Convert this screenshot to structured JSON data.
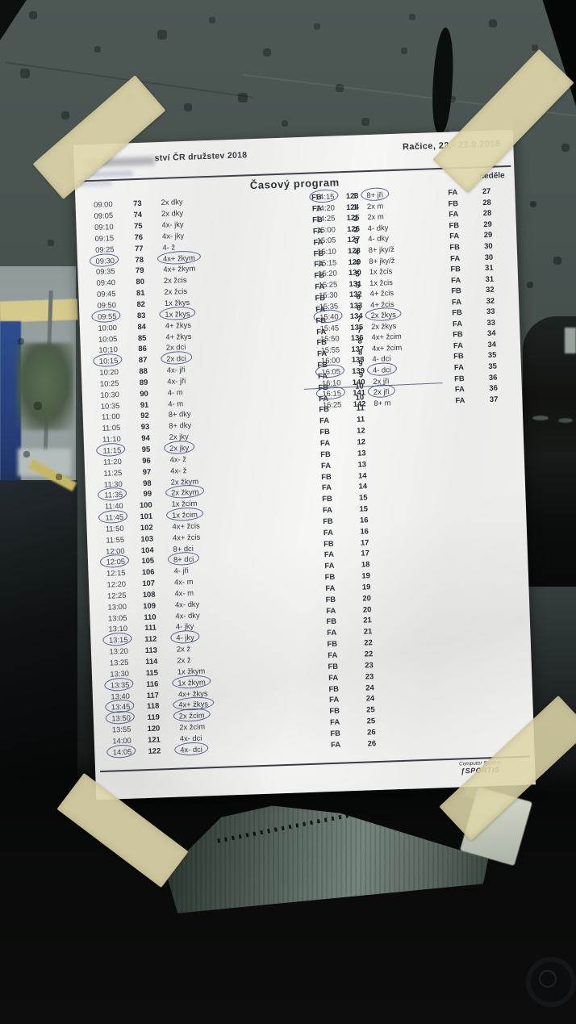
{
  "photo": {
    "colors": {
      "ink_pen": "#384886",
      "print": "#31363f",
      "tape": "#ded6aa",
      "paper": "#f2f2f1"
    },
    "header": {
      "title_partial": "ství ČR družstev 2018",
      "location_date": "Račice,  22.- 23.9.2018",
      "program_title": "Časový program",
      "day_label": "neděle"
    },
    "footer": {
      "line1": "Computer System",
      "logo": "ƒSPORTIS"
    }
  },
  "schedule": {
    "left": [
      {
        "t": "09:00",
        "n": "73",
        "b": "2x dky",
        "p": "FB",
        "f": "1",
        "c": 0
      },
      {
        "t": "09:05",
        "n": "74",
        "b": "2x dky",
        "p": "FA",
        "f": "1",
        "c": 0
      },
      {
        "t": "09:10",
        "n": "75",
        "b": "4x- jky",
        "p": "FB",
        "f": "2",
        "c": 0
      },
      {
        "t": "09:15",
        "n": "76",
        "b": "4x- jky",
        "p": "FA",
        "f": "2",
        "c": 0
      },
      {
        "t": "09:25",
        "n": "77",
        "b": "4- ž",
        "p": "FA",
        "f": "3",
        "c": 0
      },
      {
        "t": "09:30",
        "n": "78",
        "b": "4x+ žkym",
        "p": "FB",
        "f": "4",
        "c": 1
      },
      {
        "t": "09:35",
        "n": "79",
        "b": "4x+ žkym",
        "p": "FA",
        "f": "4",
        "c": 0
      },
      {
        "t": "09:40",
        "n": "80",
        "b": "2x žcis",
        "p": "FB",
        "f": "5",
        "c": 0
      },
      {
        "t": "09:45",
        "n": "81",
        "b": "2x žcis",
        "p": "FA",
        "f": "5",
        "c": 0
      },
      {
        "t": "09:50",
        "n": "82",
        "b": "1x žkys",
        "p": "FB",
        "f": "6",
        "c": 0
      },
      {
        "t": "09:55",
        "n": "83",
        "b": "1x žkys",
        "p": "FA",
        "f": "6",
        "c": 1
      },
      {
        "t": "10:00",
        "n": "84",
        "b": "4+ žkys",
        "p": "FB",
        "f": "7",
        "c": 0
      },
      {
        "t": "10:05",
        "n": "85",
        "b": "4+ žkys",
        "p": "FA",
        "f": "7",
        "c": 0
      },
      {
        "t": "10:10",
        "n": "86",
        "b": "2x dci",
        "p": "FB",
        "f": "8",
        "c": 0
      },
      {
        "t": "10:15",
        "n": "87",
        "b": "2x dci",
        "p": "FA",
        "f": "8",
        "c": 1
      },
      {
        "t": "10:20",
        "n": "88",
        "b": "4x- jři",
        "p": "FB",
        "f": "9",
        "c": 0
      },
      {
        "t": "10:25",
        "n": "89",
        "b": "4x- jři",
        "p": "FA",
        "f": "9",
        "c": 0
      },
      {
        "t": "10:30",
        "n": "90",
        "b": "4- m",
        "p": "FB",
        "f": "10",
        "c": 0
      },
      {
        "t": "10:35",
        "n": "91",
        "b": "4- m",
        "p": "FA",
        "f": "10",
        "c": 0
      },
      {
        "t": "11:00",
        "n": "92",
        "b": "8+ dky",
        "p": "FB",
        "f": "11",
        "c": 0
      },
      {
        "t": "11:05",
        "n": "93",
        "b": "8+ dky",
        "p": "FA",
        "f": "11",
        "c": 0
      },
      {
        "t": "11:10",
        "n": "94",
        "b": "2x jky",
        "p": "FB",
        "f": "12",
        "c": 0
      },
      {
        "t": "11:15",
        "n": "95",
        "b": "2x jky",
        "p": "FA",
        "f": "12",
        "c": 1
      },
      {
        "t": "11:20",
        "n": "96",
        "b": "4x- ž",
        "p": "FB",
        "f": "13",
        "c": 0
      },
      {
        "t": "11:25",
        "n": "97",
        "b": "4x- ž",
        "p": "FA",
        "f": "13",
        "c": 0
      },
      {
        "t": "11:30",
        "n": "98",
        "b": "2x žkym",
        "p": "FB",
        "f": "14",
        "c": 0
      },
      {
        "t": "11:35",
        "n": "99",
        "b": "2x žkym",
        "p": "FA",
        "f": "14",
        "c": 1
      },
      {
        "t": "11:40",
        "n": "100",
        "b": "1x žcim",
        "p": "FB",
        "f": "15",
        "c": 0
      },
      {
        "t": "11:45",
        "n": "101",
        "b": "1x žcim",
        "p": "FA",
        "f": "15",
        "c": 1
      },
      {
        "t": "11:50",
        "n": "102",
        "b": "4x+ žcis",
        "p": "FB",
        "f": "16",
        "c": 0
      },
      {
        "t": "11:55",
        "n": "103",
        "b": "4x+ žcis",
        "p": "FA",
        "f": "16",
        "c": 0
      },
      {
        "t": "12:00",
        "n": "104",
        "b": "8+ dci",
        "p": "FB",
        "f": "17",
        "c": 0
      },
      {
        "t": "12:05",
        "n": "105",
        "b": "8+ dci",
        "p": "FA",
        "f": "17",
        "c": 1
      },
      {
        "t": "12:15",
        "n": "106",
        "b": "4- jři",
        "p": "FA",
        "f": "18",
        "c": 0
      },
      {
        "t": "12:20",
        "n": "107",
        "b": "4x- m",
        "p": "FB",
        "f": "19",
        "c": 0
      },
      {
        "t": "12:25",
        "n": "108",
        "b": "4x- m",
        "p": "FA",
        "f": "19",
        "c": 0
      },
      {
        "t": "13:00",
        "n": "109",
        "b": "4x- dky",
        "p": "FB",
        "f": "20",
        "c": 0
      },
      {
        "t": "13:05",
        "n": "110",
        "b": "4x- dky",
        "p": "FA",
        "f": "20",
        "c": 0
      },
      {
        "t": "13:10",
        "n": "111",
        "b": "4- jky",
        "p": "FB",
        "f": "21",
        "c": 0
      },
      {
        "t": "13:15",
        "n": "112",
        "b": "4- jky",
        "p": "FA",
        "f": "21",
        "c": 1
      },
      {
        "t": "13:20",
        "n": "113",
        "b": "2x ž",
        "p": "FB",
        "f": "22",
        "c": 0
      },
      {
        "t": "13:25",
        "n": "114",
        "b": "2x ž",
        "p": "FA",
        "f": "22",
        "c": 0
      },
      {
        "t": "13:30",
        "n": "115",
        "b": "1x žkym",
        "p": "FB",
        "f": "23",
        "c": 0
      },
      {
        "t": "13:35",
        "n": "116",
        "b": "1x žkym",
        "p": "FA",
        "f": "23",
        "c": 1
      },
      {
        "t": "13:40",
        "n": "117",
        "b": "4x+ žkys",
        "p": "FB",
        "f": "24",
        "c": 0
      },
      {
        "t": "13:45",
        "n": "118",
        "b": "4x+ žkys",
        "p": "FA",
        "f": "24",
        "c": 1
      },
      {
        "t": "13:50",
        "n": "119",
        "b": "2x žcim",
        "p": "FB",
        "f": "25",
        "c": 1
      },
      {
        "t": "13:55",
        "n": "120",
        "b": "2x žcim",
        "p": "FA",
        "f": "25",
        "c": 0
      },
      {
        "t": "14:00",
        "n": "121",
        "b": "4x- dci",
        "p": "FB",
        "f": "26",
        "c": 0
      },
      {
        "t": "14:05",
        "n": "122",
        "b": "4x- dci",
        "p": "FA",
        "f": "26",
        "c": 1
      }
    ],
    "right": [
      {
        "t": "14:15",
        "n": "123",
        "b": "8+ jři",
        "p": "FA",
        "f": "27",
        "c": 1
      },
      {
        "t": "14:20",
        "n": "124",
        "b": "2x m",
        "p": "FB",
        "f": "28",
        "c": 0
      },
      {
        "t": "14:25",
        "n": "125",
        "b": "2x m",
        "p": "FA",
        "f": "28",
        "c": 0
      },
      {
        "t": "15:00",
        "n": "126",
        "b": "4- dky",
        "p": "FB",
        "f": "29",
        "c": 0
      },
      {
        "t": "15:05",
        "n": "127",
        "b": "4- dky",
        "p": "FA",
        "f": "29",
        "c": 0
      },
      {
        "t": "15:10",
        "n": "128",
        "b": "8+ jky/ž",
        "p": "FB",
        "f": "30",
        "c": 0
      },
      {
        "t": "15:15",
        "n": "129",
        "b": "8+ jky/ž",
        "p": "FA",
        "f": "30",
        "c": 0
      },
      {
        "t": "15:20",
        "n": "130",
        "b": "1x žcis",
        "p": "FB",
        "f": "31",
        "c": 0
      },
      {
        "t": "15:25",
        "n": "131",
        "b": "1x žcis",
        "p": "FA",
        "f": "31",
        "c": 0
      },
      {
        "t": "15:30",
        "n": "132",
        "b": "4+ žcis",
        "p": "FB",
        "f": "32",
        "c": 0
      },
      {
        "t": "15:35",
        "n": "133",
        "b": "4+ žcis",
        "p": "FA",
        "f": "32",
        "c": 0
      },
      {
        "t": "15:40",
        "n": "134",
        "b": "2x žkys",
        "p": "FB",
        "f": "33",
        "c": 1
      },
      {
        "t": "15:45",
        "n": "135",
        "b": "2x žkys",
        "p": "FA",
        "f": "33",
        "c": 0
      },
      {
        "t": "15:50",
        "n": "136",
        "b": "4x+ žcim",
        "p": "FB",
        "f": "34",
        "c": 0
      },
      {
        "t": "15:55",
        "n": "137",
        "b": "4x+ žcim",
        "p": "FA",
        "f": "34",
        "c": 0
      },
      {
        "t": "16:00",
        "n": "138",
        "b": "4- dci",
        "p": "FB",
        "f": "35",
        "c": 0
      },
      {
        "t": "16:05",
        "n": "139",
        "b": "4- dci",
        "p": "FA",
        "f": "35",
        "c": 1
      },
      {
        "t": "16:10",
        "n": "140",
        "b": "2x jři",
        "p": "FB",
        "f": "36",
        "c": 0
      },
      {
        "t": "16:15",
        "n": "141",
        "b": "2x jři",
        "p": "FA",
        "f": "36",
        "c": 1,
        "l": 1
      },
      {
        "t": "16:25",
        "n": "142",
        "b": "8+ m",
        "p": "FA",
        "f": "37",
        "c": 0
      }
    ]
  }
}
